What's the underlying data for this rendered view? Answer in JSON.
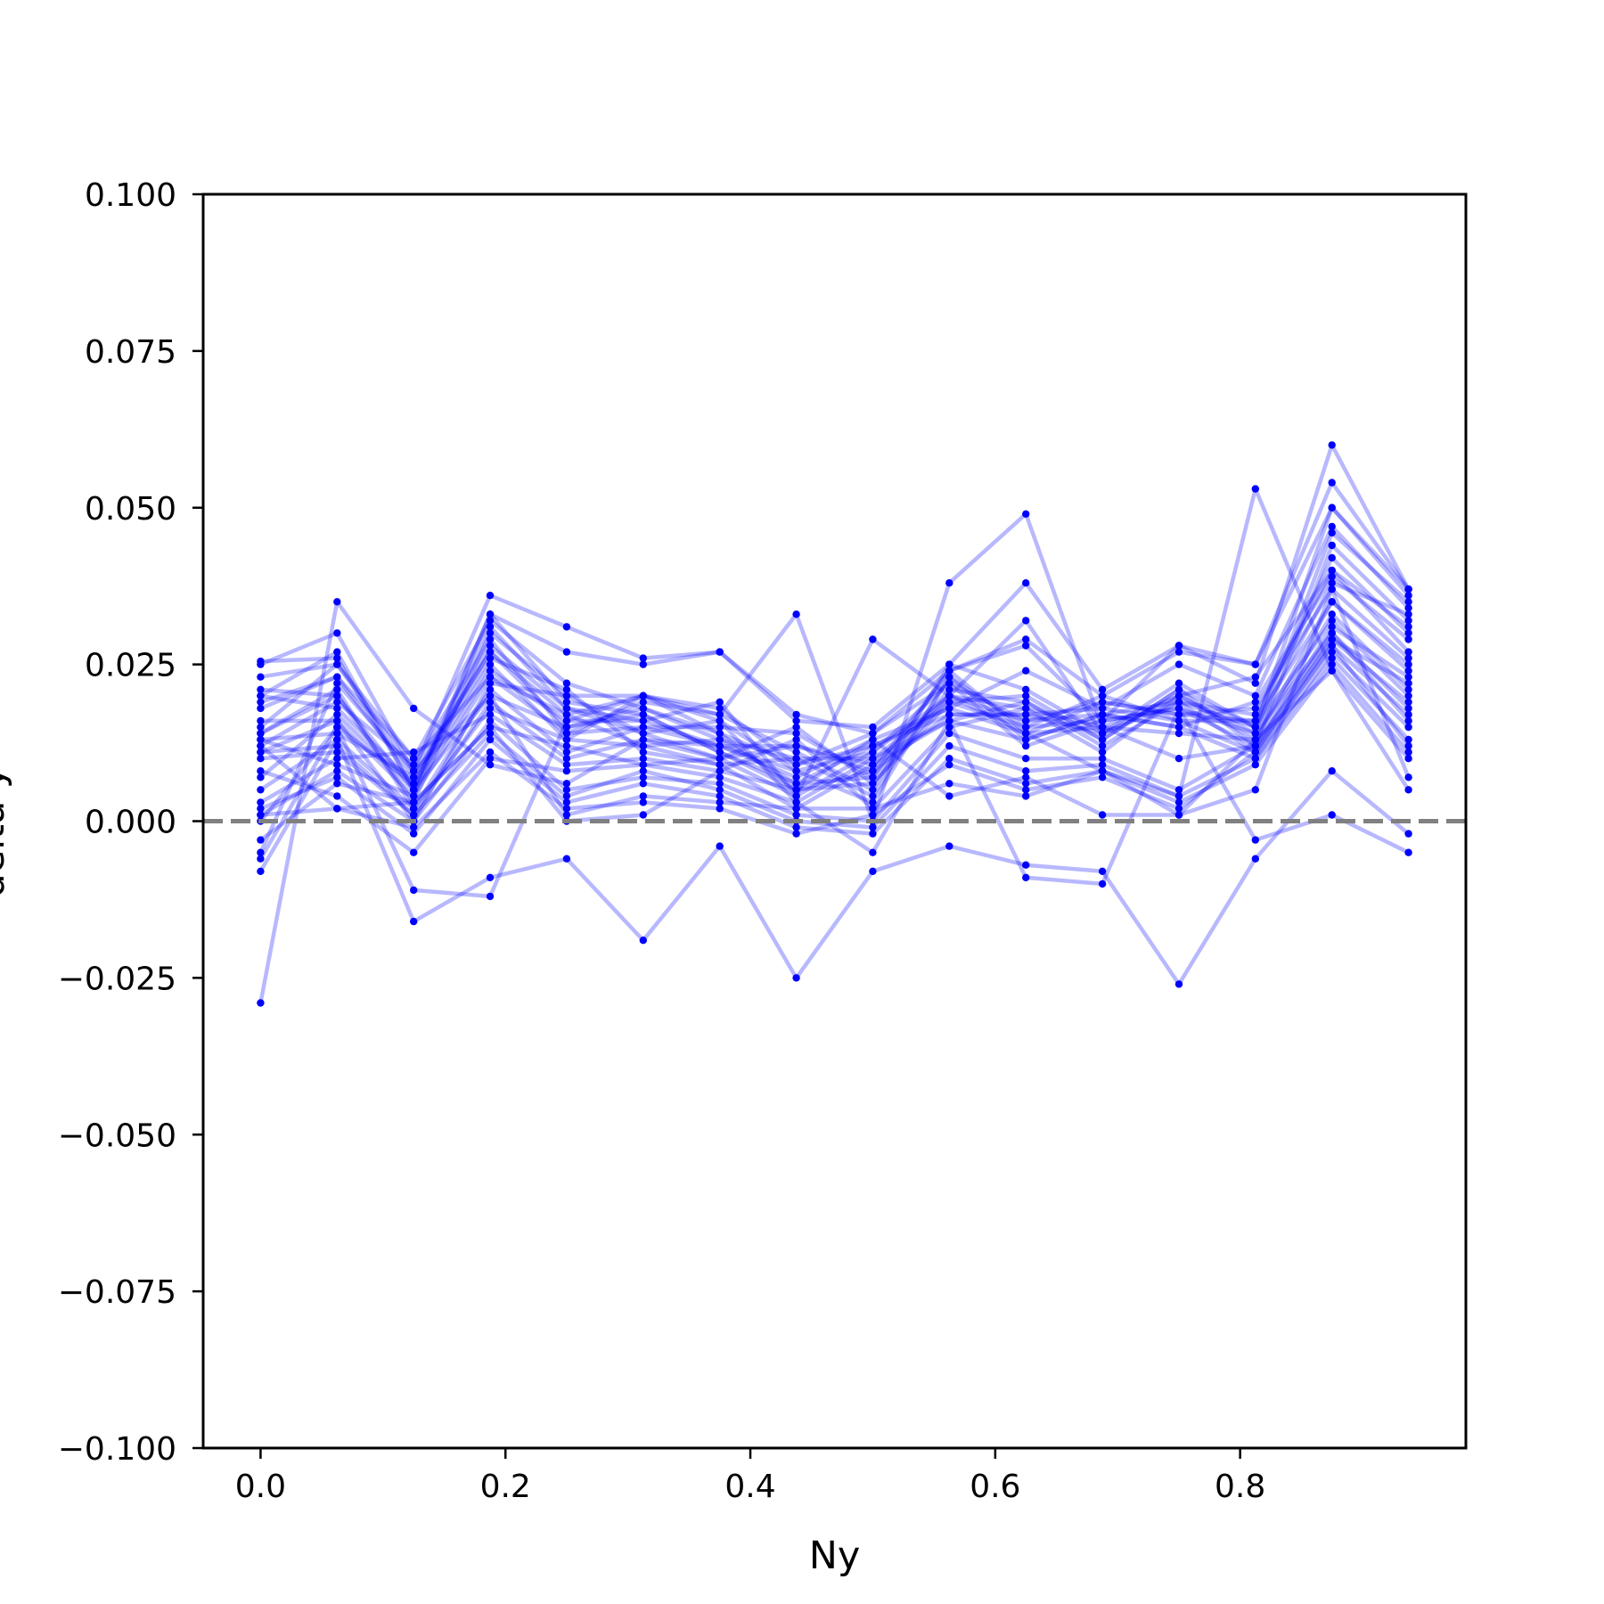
{
  "chart_data": {
    "type": "line",
    "xlabel": "Ny",
    "ylabel": "delta y",
    "xlim": [
      -0.046875,
      0.984375
    ],
    "ylim": [
      -0.1,
      0.1
    ],
    "xticks": [
      0.0,
      0.2,
      0.4,
      0.6,
      0.8
    ],
    "xtick_labels": [
      "0.0",
      "0.2",
      "0.4",
      "0.6",
      "0.8"
    ],
    "yticks": [
      0.1,
      0.075,
      0.05,
      0.025,
      0.0,
      -0.025,
      -0.05,
      -0.075,
      -0.1
    ],
    "ytick_labels": [
      "0.100",
      "0.075",
      "0.050",
      "0.025",
      "0.000",
      "−0.025",
      "−0.050",
      "−0.075",
      "−0.100"
    ],
    "grid": false,
    "reference_line": {
      "y": 0.0,
      "style": "dashed",
      "color": "#808080"
    },
    "line_color": "#0000ff",
    "line_alpha": 0.28,
    "marker_color": "#0000ff",
    "x": [
      0.0,
      0.0625,
      0.125,
      0.1875,
      0.25,
      0.3125,
      0.375,
      0.4375,
      0.5,
      0.5625,
      0.625,
      0.6875,
      0.75,
      0.8125,
      0.875,
      0.9375
    ],
    "series": [
      {
        "values": [
          0.0255,
          0.026,
          0.005,
          0.031,
          0.018,
          0.016,
          0.012,
          0.008,
          0.011,
          0.022,
          0.016,
          0.017,
          0.019,
          0.015,
          0.038,
          0.033
        ]
      },
      {
        "values": [
          0.023,
          0.025,
          0.008,
          0.027,
          0.015,
          0.018,
          0.014,
          0.005,
          0.006,
          0.02,
          0.018,
          0.015,
          0.02,
          0.013,
          0.035,
          0.025
        ]
      },
      {
        "values": [
          0.021,
          0.02,
          0.003,
          0.03,
          0.02,
          0.014,
          0.01,
          0.012,
          0.008,
          0.024,
          0.014,
          0.019,
          0.017,
          0.016,
          0.042,
          0.03
        ]
      },
      {
        "values": [
          0.02,
          0.018,
          0.006,
          0.025,
          0.013,
          0.02,
          0.016,
          0.003,
          0.01,
          0.019,
          0.02,
          0.013,
          0.021,
          0.012,
          0.031,
          0.023
        ]
      },
      {
        "values": [
          0.019,
          0.023,
          0.01,
          0.023,
          0.017,
          0.012,
          0.013,
          0.01,
          0.004,
          0.023,
          0.015,
          0.016,
          0.018,
          0.014,
          0.046,
          0.035
        ]
      },
      {
        "values": [
          0.016,
          0.016,
          0.004,
          0.033,
          0.019,
          0.017,
          0.011,
          0.006,
          0.012,
          0.017,
          0.017,
          0.018,
          0.016,
          0.011,
          0.029,
          0.019
        ]
      },
      {
        "values": [
          0.014,
          0.021,
          0.002,
          0.021,
          0.011,
          0.015,
          0.015,
          0.014,
          0.007,
          0.021,
          0.019,
          0.012,
          0.019,
          0.017,
          0.04,
          0.027
        ]
      },
      {
        "values": [
          0.013,
          0.014,
          0.007,
          0.026,
          0.021,
          0.011,
          0.009,
          0.002,
          0.009,
          0.016,
          0.013,
          0.017,
          0.015,
          0.01,
          0.027,
          0.015
        ]
      },
      {
        "values": [
          0.012,
          0.019,
          0.009,
          0.029,
          0.014,
          0.019,
          0.017,
          0.011,
          0.005,
          0.025,
          0.021,
          0.014,
          0.022,
          0.015,
          0.05,
          0.037
        ]
      },
      {
        "values": [
          0.011,
          0.012,
          0.001,
          0.019,
          0.01,
          0.013,
          0.012,
          0.007,
          0.013,
          0.018,
          0.014,
          0.015,
          0.014,
          0.013,
          0.033,
          0.021
        ]
      },
      {
        "values": [
          0.007,
          0.017,
          0.005,
          0.024,
          0.016,
          0.016,
          0.019,
          0.004,
          0.011,
          0.02,
          0.016,
          0.019,
          0.017,
          0.018,
          0.037,
          0.026
        ]
      },
      {
        "values": [
          0.003,
          0.01,
          0.011,
          0.017,
          0.009,
          0.01,
          0.008,
          0.013,
          0.002,
          0.015,
          0.018,
          0.011,
          0.02,
          0.014,
          0.03,
          0.018
        ]
      },
      {
        "values": [
          0.001,
          0.008,
          0.0,
          0.022,
          0.02,
          0.02,
          0.014,
          0.009,
          0.014,
          0.022,
          0.012,
          0.016,
          0.018,
          0.012,
          0.044,
          0.032
        ]
      },
      {
        "values": [
          -0.003,
          0.006,
          0.003,
          0.015,
          0.012,
          0.009,
          0.01,
          0.015,
          0.006,
          0.019,
          0.015,
          0.02,
          0.016,
          0.016,
          0.035,
          0.024
        ]
      },
      {
        "values": [
          -0.005,
          0.022,
          0.008,
          0.02,
          0.015,
          0.017,
          0.011,
          0.005,
          0.008,
          0.017,
          0.017,
          0.014,
          0.019,
          0.011,
          0.028,
          0.017
        ]
      },
      {
        "values": [
          -0.006,
          0.015,
          0.006,
          0.028,
          0.018,
          0.014,
          0.016,
          0.008,
          0.003,
          0.023,
          0.013,
          0.017,
          0.015,
          0.019,
          0.039,
          0.029
        ]
      },
      {
        "values": [
          -0.008,
          0.013,
          0.002,
          0.018,
          0.013,
          0.012,
          0.009,
          0.01,
          0.01,
          0.016,
          0.019,
          0.013,
          0.021,
          0.015,
          0.032,
          0.02
        ]
      },
      {
        "values": [
          0.015,
          0.025,
          0.01,
          0.032,
          0.022,
          0.018,
          0.013,
          0.006,
          0.007,
          0.024,
          0.028,
          0.016,
          0.028,
          0.025,
          0.054,
          0.037
        ]
      },
      {
        "values": [
          0.018,
          0.023,
          0.007,
          0.027,
          0.017,
          0.02,
          0.018,
          0.009,
          0.012,
          0.018,
          0.024,
          0.018,
          0.025,
          0.02,
          0.047,
          0.034
        ]
      },
      {
        "values": [
          0.013,
          0.009,
          0.004,
          0.023,
          0.014,
          0.015,
          0.012,
          0.012,
          0.009,
          0.02,
          0.032,
          0.014,
          0.02,
          0.023,
          0.04,
          0.031
        ]
      },
      {
        "values": [
          0.025,
          0.03,
          0.008,
          0.036,
          0.031,
          0.026,
          0.027,
          0.016,
          0.015,
          0.025,
          0.038,
          0.021,
          0.028,
          0.022,
          0.06,
          0.037
        ]
      },
      {
        "values": [
          0.02,
          0.027,
          0.005,
          0.033,
          0.027,
          0.025,
          0.027,
          0.017,
          0.014,
          0.024,
          0.029,
          0.02,
          0.027,
          0.025,
          0.05,
          0.036
        ]
      },
      {
        "values": [
          0.011,
          0.016,
          0.0,
          0.016,
          0.005,
          0.007,
          0.006,
          0.001,
          0.0,
          0.014,
          0.01,
          0.01,
          0.005,
          0.012,
          0.03,
          0.016
        ]
      },
      {
        "values": [
          0.01,
          0.011,
          0.001,
          0.014,
          0.004,
          0.008,
          0.005,
          0.0,
          -0.001,
          0.012,
          0.008,
          0.009,
          0.004,
          0.01,
          0.026,
          0.013
        ]
      },
      {
        "values": [
          0.002,
          0.007,
          -0.002,
          0.013,
          0.003,
          0.006,
          0.004,
          -0.001,
          -0.002,
          0.01,
          0.006,
          0.008,
          0.003,
          0.009,
          0.025,
          0.011
        ]
      },
      {
        "values": [
          0.001,
          0.002,
          -0.001,
          0.011,
          0.002,
          0.003,
          0.002,
          -0.002,
          0.001,
          0.009,
          0.005,
          0.007,
          0.002,
          0.011,
          0.028,
          0.012
        ]
      },
      {
        "values": [
          0.014,
          0.02,
          0.005,
          0.02,
          0.001,
          0.004,
          0.003,
          0.002,
          0.002,
          0.006,
          0.004,
          0.008,
          0.001,
          0.013,
          0.024,
          0.01
        ]
      },
      {
        "values": [
          0.012,
          0.002,
          0.003,
          0.015,
          0.0,
          0.001,
          0.008,
          0.005,
          0.013,
          0.004,
          0.007,
          0.001,
          0.001,
          0.005,
          0.037,
          0.007
        ]
      },
      {
        "values": [
          0.0,
          0.015,
          -0.011,
          -0.012,
          0.016,
          0.02,
          0.017,
          0.033,
          0.0,
          0.038,
          0.049,
          0.015,
          0.01,
          0.012,
          0.029,
          0.022
        ]
      },
      {
        "values": [
          -0.029,
          0.035,
          0.018,
          0.009,
          0.006,
          0.013,
          0.01,
          0.004,
          0.029,
          0.02,
          0.014,
          0.008,
          0.004,
          0.053,
          0.024,
          0.005
        ]
      },
      {
        "values": [
          0.005,
          0.013,
          -0.016,
          -0.009,
          -0.006,
          -0.019,
          -0.004,
          -0.025,
          -0.008,
          -0.004,
          -0.007,
          -0.008,
          -0.026,
          -0.006,
          0.008,
          -0.002
        ]
      },
      {
        "values": [
          0.008,
          0.004,
          -0.005,
          0.01,
          0.008,
          0.009,
          0.007,
          0.003,
          -0.005,
          0.016,
          -0.009,
          -0.01,
          0.018,
          -0.003,
          0.001,
          -0.005
        ]
      }
    ]
  }
}
